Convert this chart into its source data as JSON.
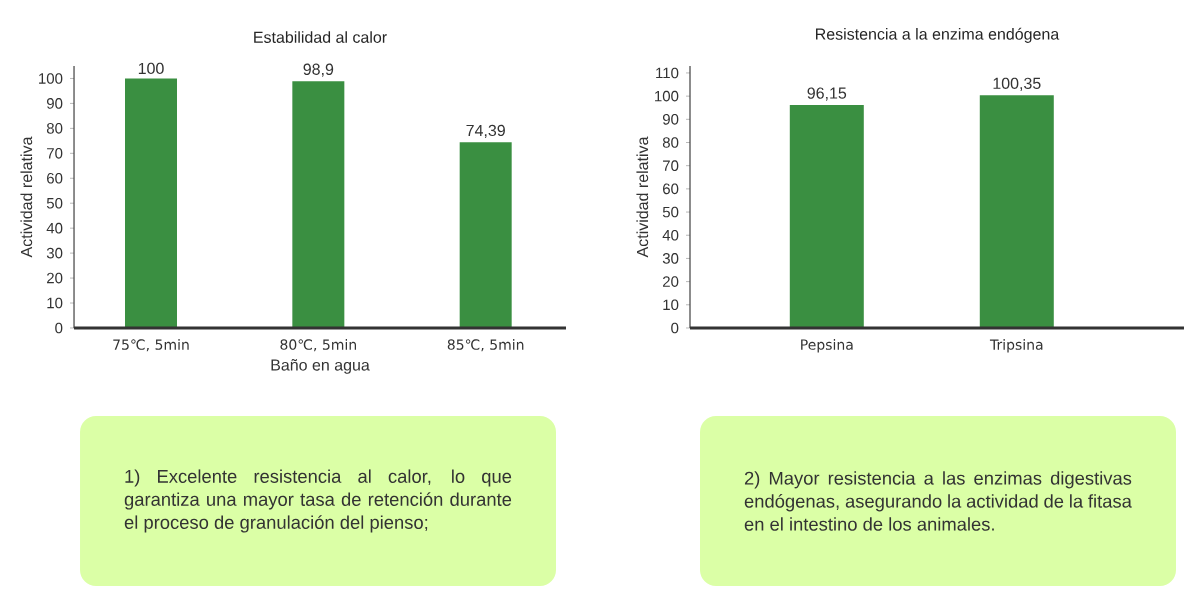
{
  "chart_data": [
    {
      "type": "bar",
      "title": "Estabilidad al calor",
      "xlabel": "Baño en agua",
      "ylabel": "Actividad relativa",
      "categories": [
        "75℃, 5min",
        "80℃, 5min",
        "85℃, 5min"
      ],
      "values": [
        100,
        98.9,
        74.39
      ],
      "value_labels": [
        "100",
        "98,9",
        "74,39"
      ],
      "color": "#3a8f41",
      "ylim": [
        0,
        105
      ],
      "yticks": [
        0,
        10,
        20,
        30,
        40,
        50,
        60,
        70,
        80,
        90,
        100
      ],
      "annotations": [
        "1) Excelente resistencia al calor, lo que garantiza una mayor tasa de retención durante el proceso de granulación del pienso;"
      ]
    },
    {
      "type": "bar",
      "title": "Resistencia a la enzima endógena",
      "ylabel": "Actividad relativa",
      "categories": [
        "Pepsina",
        "Tripsina"
      ],
      "values": [
        96.15,
        100.35
      ],
      "value_labels": [
        "96,15",
        "100,35"
      ],
      "color": "#3a8f41",
      "ylim": [
        0,
        113
      ],
      "yticks": [
        0,
        10,
        20,
        30,
        40,
        50,
        60,
        70,
        80,
        90,
        100,
        110
      ],
      "annotations": [
        "2) Mayor resistencia a las enzimas digestivas endógenas, asegurando la actividad de la fitasa en el intestino de los animales."
      ]
    }
  ]
}
